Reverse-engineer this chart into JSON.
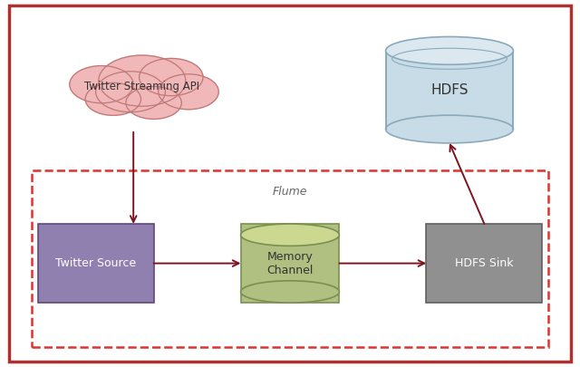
{
  "background_color": "#ffffff",
  "outer_border_color": "#b03030",
  "dashed_border_color": "#dd3333",
  "arrow_color": "#7b1520",
  "cloud_fill": "#f0b8b8",
  "cloud_edge": "#c07878",
  "cloud_text": "Twitter Streaming API",
  "cyl_body_color": "#c8dce8",
  "cyl_top_color": "#dce8f0",
  "cyl_edge_color": "#8aaabb",
  "cyl_text": "HDFS",
  "ts_fill": "#9080b0",
  "ts_edge": "#604878",
  "ts_text": "Twitter Source",
  "mc_fill": "#b0c080",
  "mc_edge": "#7a9050",
  "mc_text": "Memory\nChannel",
  "hs_fill": "#909090",
  "hs_edge": "#606060",
  "hs_text": "HDFS Sink",
  "flume_label": "Flume",
  "fig_w": 6.4,
  "fig_h": 4.05,
  "dpi": 100
}
